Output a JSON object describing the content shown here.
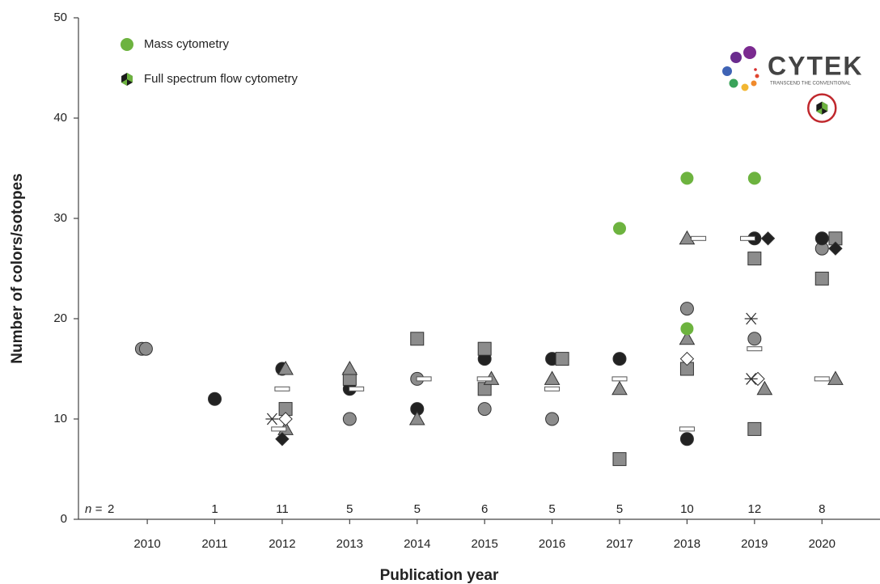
{
  "chart_data": {
    "type": "scatter",
    "xlabel": "Publication year",
    "ylabel": "Number of colors/sotopes",
    "xlim": [
      2008.98,
      2020.86
    ],
    "xticks": [
      2010,
      2011,
      2012,
      2013,
      2014,
      2015,
      2016,
      2017,
      2018,
      2019,
      2020
    ],
    "ylim": [
      0,
      50
    ],
    "yticks": [
      0,
      10,
      20,
      30,
      40,
      50
    ],
    "counts": [
      2,
      1,
      11,
      5,
      5,
      6,
      5,
      5,
      10,
      12,
      8
    ],
    "count_prefix": "n =",
    "logo": {
      "text": "CYTEK",
      "tagline": "TRANSCEND THE CONVENTIONAL"
    },
    "series": [
      {
        "marker": "circle",
        "color": "#8c8c8c",
        "x": [
          2009.92,
          2009.98,
          2013,
          2014,
          2015,
          2016,
          2018,
          2019,
          2020
        ],
        "values": [
          17,
          17,
          10,
          14,
          11,
          10,
          21,
          18,
          27
        ]
      },
      {
        "marker": "circle",
        "color": "#222222",
        "x": [
          2011,
          2012,
          2013,
          2014,
          2015,
          2016,
          2017,
          2018,
          2019,
          2020
        ],
        "values": [
          12,
          15,
          13,
          11,
          16,
          16,
          16,
          8,
          28,
          28
        ]
      },
      {
        "marker": "square",
        "color": "#8c8c8c",
        "x": [
          2012.05,
          2013,
          2014,
          2015,
          2015,
          2016.15,
          2017,
          2018,
          2019,
          2019,
          2020,
          2020.2
        ],
        "values": [
          11,
          14,
          18,
          17,
          13,
          16,
          6,
          15,
          26,
          9,
          24,
          28
        ]
      },
      {
        "marker": "triangle",
        "color": "#8c8c8c",
        "x": [
          2012.05,
          2012.05,
          2013,
          2014,
          2015.1,
          2016,
          2017,
          2018,
          2018,
          2019.15,
          2020.2
        ],
        "values": [
          15,
          9,
          15,
          10,
          14,
          14,
          13,
          28,
          18,
          13,
          14
        ]
      },
      {
        "marker": "diamond",
        "color": "#222222",
        "x": [
          2012,
          2019.2,
          2020.2
        ],
        "values": [
          8,
          28,
          27
        ]
      },
      {
        "marker": "diamond",
        "color": "#ffffff",
        "x": [
          2012.05,
          2018,
          2019.05
        ],
        "values": [
          10,
          16,
          14
        ]
      },
      {
        "marker": "dash",
        "color": "#ffffff",
        "x": [
          2012,
          2011.95,
          2013.1,
          2014.1,
          2015,
          2016,
          2017,
          2018,
          2018.17,
          2018.9,
          2019,
          2020
        ],
        "values": [
          13,
          9,
          13,
          14,
          14,
          13,
          14,
          9,
          28,
          28,
          17,
          14
        ]
      },
      {
        "marker": "asterisk",
        "color": "#333333",
        "x": [
          2011.85,
          2018.95,
          2018.95
        ],
        "values": [
          10,
          20,
          14
        ]
      },
      {
        "name": "Mass cytometry",
        "marker": "circle",
        "color": "#6db33f",
        "x": [
          2017,
          2018,
          2018,
          2019
        ],
        "values": [
          29,
          34,
          19,
          34
        ]
      },
      {
        "name": "Full spectrum flow cytometry",
        "marker": "hexagon",
        "color": "#6db33f",
        "x": [
          2020
        ],
        "values": [
          41
        ]
      }
    ]
  }
}
